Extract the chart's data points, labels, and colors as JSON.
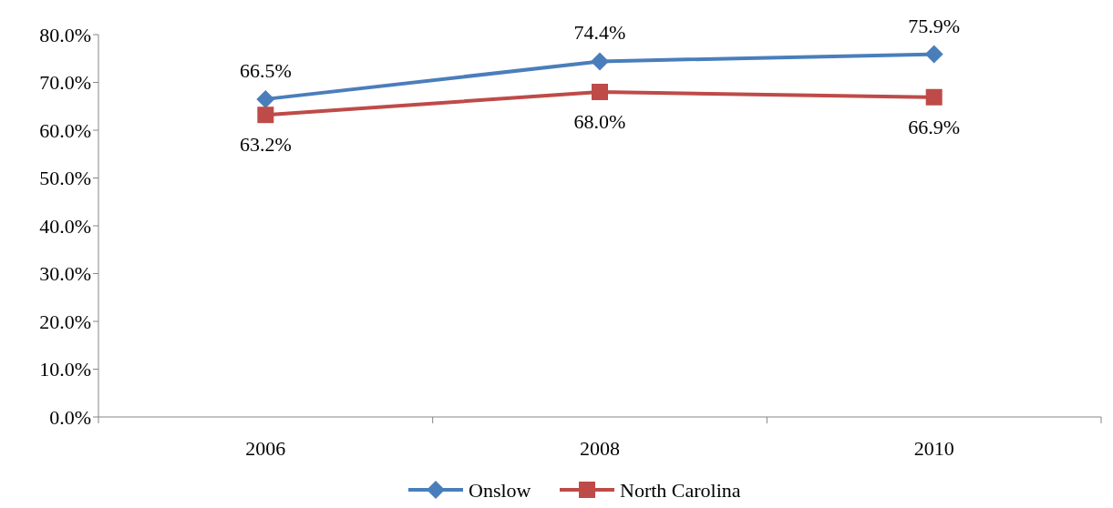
{
  "chart_data": {
    "type": "line",
    "categories": [
      "2006",
      "2008",
      "2010"
    ],
    "series": [
      {
        "name": "Onslow",
        "color": "#4a7ebb",
        "values": [
          66.5,
          74.4,
          75.9
        ],
        "value_labels": [
          "66.5%",
          "74.4%",
          "75.9%"
        ],
        "marker": "diamond"
      },
      {
        "name": "North Carolina",
        "color": "#be4b48",
        "values": [
          63.2,
          68.0,
          66.9
        ],
        "value_labels": [
          "63.2%",
          "68.0%",
          "66.9%"
        ],
        "marker": "square"
      }
    ],
    "ylim": [
      0,
      80
    ],
    "yticks": [
      {
        "value": 0,
        "label": "0.0%"
      },
      {
        "value": 10,
        "label": "10.0%"
      },
      {
        "value": 20,
        "label": "20.0%"
      },
      {
        "value": 30,
        "label": "30.0%"
      },
      {
        "value": 40,
        "label": "40.0%"
      },
      {
        "value": 50,
        "label": "50.0%"
      },
      {
        "value": 60,
        "label": "60.0%"
      },
      {
        "value": 70,
        "label": "70.0%"
      },
      {
        "value": 80,
        "label": "80.0%"
      }
    ],
    "grid": false,
    "legend": "bottom",
    "line_style": "solid"
  }
}
